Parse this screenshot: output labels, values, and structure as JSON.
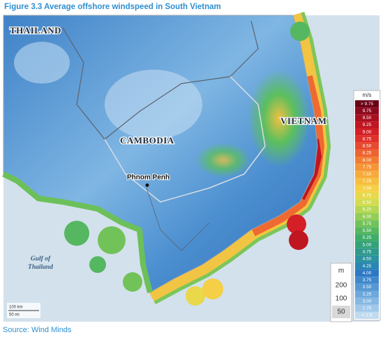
{
  "header": {
    "title": "Figure 3.3 Average offshore windspeed in South Vietnam"
  },
  "map": {
    "labels": {
      "thailand": "THAILAND",
      "cambodia": "CAMBODIA",
      "vietnam": "VIETNAM",
      "city": "Phnom Penh",
      "gulf": [
        "Gulf of",
        "Thailand"
      ]
    },
    "scale": [
      "100 km",
      "50 mi"
    ]
  },
  "zoom": {
    "unit": "m",
    "levels": [
      "200",
      "100",
      "50"
    ]
  },
  "legend": {
    "unit": "m/s",
    "entries": [
      {
        "label": "> 9.75",
        "color": "#6b0016"
      },
      {
        "label": "9.75",
        "color": "#8c0a1e"
      },
      {
        "label": "9.50",
        "color": "#a8101f"
      },
      {
        "label": "9.25",
        "color": "#c01622"
      },
      {
        "label": "9.00",
        "color": "#d41f26"
      },
      {
        "label": "8.75",
        "color": "#e0302a"
      },
      {
        "label": "8.50",
        "color": "#e84a2e"
      },
      {
        "label": "8.25",
        "color": "#ee6430"
      },
      {
        "label": "8.00",
        "color": "#f27d32"
      },
      {
        "label": "7.75",
        "color": "#f59536"
      },
      {
        "label": "7.50",
        "color": "#f7aa3a"
      },
      {
        "label": "7.25",
        "color": "#f8be40"
      },
      {
        "label": "7.00",
        "color": "#f5cf45"
      },
      {
        "label": "6.75",
        "color": "#e8d84a"
      },
      {
        "label": "6.50",
        "color": "#d2dc4e"
      },
      {
        "label": "6.25",
        "color": "#b4d752"
      },
      {
        "label": "6.00",
        "color": "#92cd55"
      },
      {
        "label": "5.75",
        "color": "#72c25a"
      },
      {
        "label": "5.50",
        "color": "#55b760"
      },
      {
        "label": "5.25",
        "color": "#3fac6a"
      },
      {
        "label": "5.00",
        "color": "#33a27a"
      },
      {
        "label": "4.75",
        "color": "#2e9a8c"
      },
      {
        "label": "4.50",
        "color": "#2a92a0"
      },
      {
        "label": "4.25",
        "color": "#2a86b4"
      },
      {
        "label": "4.00",
        "color": "#2c78c4"
      },
      {
        "label": "3.75",
        "color": "#3f88cc"
      },
      {
        "label": "3.50",
        "color": "#5598d4"
      },
      {
        "label": "3.25",
        "color": "#6ca8dc"
      },
      {
        "label": "3.00",
        "color": "#85b8e3"
      },
      {
        "label": "2.75",
        "color": "#a0c8ea"
      },
      {
        "label": "< 2.5",
        "color": "#c0dbf0"
      }
    ]
  },
  "footer": {
    "source": "Source: Wind Minds"
  }
}
